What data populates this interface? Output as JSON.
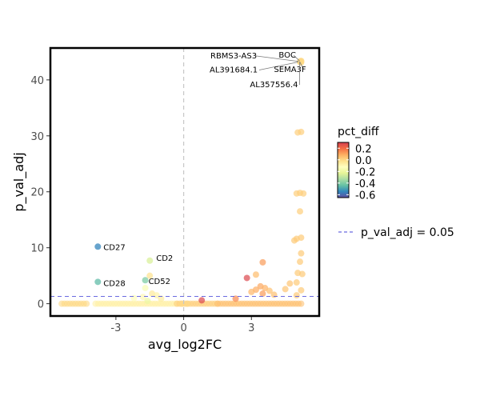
{
  "chart_data": {
    "type": "scatter",
    "xlabel": "avg_log2FC",
    "ylabel": "p_val_adj",
    "xlim": [
      -5.9,
      6.0
    ],
    "ylim": [
      -2.2,
      45.7
    ],
    "x_ticks": [
      -3,
      0,
      3
    ],
    "x_tick_labels": [
      "-3",
      "0",
      "3"
    ],
    "y_ticks": [
      0,
      10,
      20,
      30,
      40
    ],
    "y_tick_labels": [
      "0",
      "10",
      "20",
      "30",
      "40"
    ],
    "threshold": {
      "y": 1.3,
      "color": "#6a6ae0",
      "label": "p_val_adj = 0.05"
    },
    "vline": {
      "x": 0
    },
    "grid": false,
    "color_scale": {
      "title": "pct_diff",
      "min": -0.65,
      "max": 0.3,
      "ticks": [
        0.2,
        0.0,
        -0.2,
        -0.4,
        -0.6
      ],
      "tick_labels": [
        "0.2",
        "0.0",
        "-0.2",
        "-0.4",
        "-0.6"
      ],
      "stops": [
        "#5e4fa2",
        "#3288bd",
        "#66c2a5",
        "#abdda4",
        "#e6f598",
        "#ffffbf",
        "#fee08b",
        "#fdae61",
        "#f46d43",
        "#d53e4f"
      ]
    },
    "legend_position": "right",
    "labeled_points": [
      {
        "name": "RBMS3-AS3",
        "x": 5.15,
        "y": 43.3,
        "color": 0.0
      },
      {
        "name": "BOC",
        "x": 5.2,
        "y": 43.4,
        "color": 0.0
      },
      {
        "name": "AL391684.1",
        "x": 5.15,
        "y": 43.2,
        "color": 0.0
      },
      {
        "name": "SEMA3F",
        "x": 5.2,
        "y": 43.3,
        "color": 0.0
      },
      {
        "name": "AL357556.4",
        "x": 5.2,
        "y": 43.1,
        "color": 0.0
      },
      {
        "name": "CD27",
        "x": -3.8,
        "y": 10.2,
        "color": -0.55
      },
      {
        "name": "CD2",
        "x": -1.5,
        "y": 7.7,
        "color": -0.25
      },
      {
        "name": "CD52",
        "x": -1.7,
        "y": 4.2,
        "color": -0.4
      },
      {
        "name": "CD28",
        "x": -3.8,
        "y": 3.9,
        "color": -0.45
      }
    ],
    "points": [
      {
        "x": 5.2,
        "y": 30.7,
        "color": 0.02
      },
      {
        "x": 5.05,
        "y": 30.6,
        "color": 0.02
      },
      {
        "x": 5.0,
        "y": 19.7,
        "color": 0.02
      },
      {
        "x": 5.15,
        "y": 19.8,
        "color": 0.02
      },
      {
        "x": 5.3,
        "y": 19.7,
        "color": 0.02
      },
      {
        "x": 5.15,
        "y": 16.5,
        "color": 0.02
      },
      {
        "x": 5.0,
        "y": 11.6,
        "color": 0.03
      },
      {
        "x": 5.2,
        "y": 11.8,
        "color": 0.03
      },
      {
        "x": 4.9,
        "y": 11.3,
        "color": 0.03
      },
      {
        "x": 5.2,
        "y": 9.0,
        "color": 0.03
      },
      {
        "x": 5.15,
        "y": 7.5,
        "color": 0.03
      },
      {
        "x": 3.5,
        "y": 7.4,
        "color": 0.12
      },
      {
        "x": 5.05,
        "y": 5.5,
        "color": 0.03
      },
      {
        "x": 5.25,
        "y": 5.3,
        "color": 0.03
      },
      {
        "x": 2.8,
        "y": 4.6,
        "color": 0.28
      },
      {
        "x": 3.2,
        "y": 5.2,
        "color": 0.06
      },
      {
        "x": 5.0,
        "y": 3.8,
        "color": 0.03
      },
      {
        "x": 4.7,
        "y": 3.6,
        "color": 0.04
      },
      {
        "x": 3.4,
        "y": 3.1,
        "color": 0.1
      },
      {
        "x": 3.6,
        "y": 2.8,
        "color": 0.08
      },
      {
        "x": 3.2,
        "y": 2.5,
        "color": 0.09
      },
      {
        "x": 3.8,
        "y": 2.3,
        "color": 0.05
      },
      {
        "x": 4.5,
        "y": 2.6,
        "color": 0.04
      },
      {
        "x": 3.0,
        "y": 2.1,
        "color": 0.07
      },
      {
        "x": 3.5,
        "y": 1.8,
        "color": 0.12
      },
      {
        "x": 4.0,
        "y": 1.6,
        "color": 0.05
      },
      {
        "x": 5.2,
        "y": 2.4,
        "color": 0.03
      },
      {
        "x": 5.0,
        "y": 1.5,
        "color": 0.03
      },
      {
        "x": -1.5,
        "y": 5.0,
        "color": -0.02
      },
      {
        "x": -1.7,
        "y": 2.8,
        "color": -0.15
      },
      {
        "x": -1.4,
        "y": 1.8,
        "color": -0.05
      },
      {
        "x": -1.8,
        "y": 1.2,
        "color": -0.1
      },
      {
        "x": -1.2,
        "y": 1.5,
        "color": -0.08
      },
      {
        "x": -2.2,
        "y": 1.0,
        "color": -0.12
      },
      {
        "x": -1.0,
        "y": 0.9,
        "color": -0.06
      },
      {
        "x": -1.6,
        "y": 0.5,
        "color": -0.2
      },
      {
        "x": 0.8,
        "y": 0.6,
        "color": 0.28
      },
      {
        "x": 2.3,
        "y": 0.9,
        "color": 0.15
      },
      {
        "x": -0.1,
        "y": 0.0,
        "color": 0.0
      },
      {
        "x": 0.15,
        "y": 0.0,
        "color": 0.0
      }
    ],
    "baseline_band": [
      {
        "x_from": -5.4,
        "x_to": -4.3,
        "color": 0.0
      },
      {
        "x_from": -3.9,
        "x_to": -0.3,
        "color": -0.07
      },
      {
        "x_from": -0.3,
        "x_to": 1.5,
        "color": 0.02
      },
      {
        "x_from": 1.5,
        "x_to": 5.2,
        "color": 0.05
      }
    ]
  }
}
